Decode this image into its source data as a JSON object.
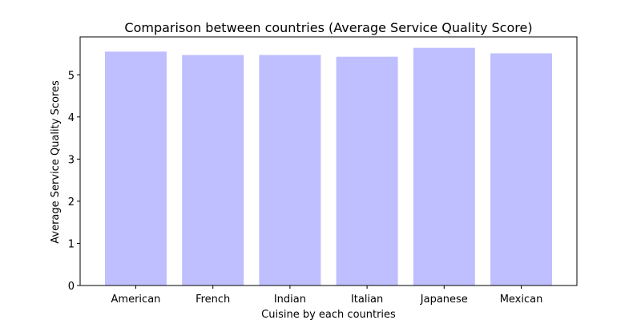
{
  "chart_data": {
    "type": "bar",
    "title": "Comparison between countries (Average Service Quality Score)",
    "xlabel": "Cuisine by each countries",
    "ylabel": "Average Service Quality Scores",
    "categories": [
      "American",
      "French",
      "Indian",
      "Italian",
      "Japanese",
      "Mexican"
    ],
    "values": [
      5.55,
      5.47,
      5.47,
      5.43,
      5.64,
      5.51
    ],
    "ylim": [
      0,
      5.9
    ],
    "yticks": [
      0,
      1,
      2,
      3,
      4,
      5
    ],
    "grid": false,
    "bar_color": "#bfbfff"
  }
}
